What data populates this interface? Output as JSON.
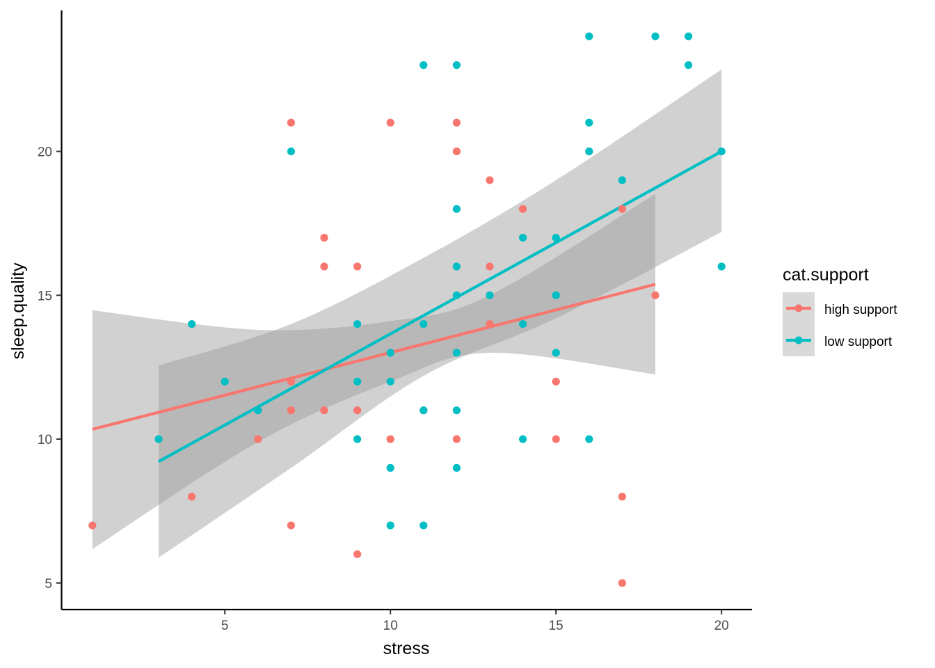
{
  "chart_data": {
    "type": "scatter",
    "xlabel": "stress",
    "ylabel": "sleep.quality",
    "xlim": [
      0.1,
      20.9
    ],
    "ylim": [
      4.1,
      24.9
    ],
    "x_ticks": [
      5,
      10,
      15,
      20
    ],
    "y_ticks": [
      5,
      10,
      15,
      20
    ],
    "grid": false,
    "legend": {
      "title": "cat.support",
      "placement": "right"
    },
    "series": [
      {
        "name": "high support",
        "color": "#F8766D",
        "points": [
          [
            1,
            7
          ],
          [
            4,
            8
          ],
          [
            6,
            10
          ],
          [
            7,
            21
          ],
          [
            7,
            12
          ],
          [
            7,
            11
          ],
          [
            7,
            7
          ],
          [
            8,
            17
          ],
          [
            8,
            16
          ],
          [
            8,
            11
          ],
          [
            9,
            16
          ],
          [
            9,
            11
          ],
          [
            9,
            6
          ],
          [
            10,
            21
          ],
          [
            10,
            10
          ],
          [
            11,
            11
          ],
          [
            12,
            21
          ],
          [
            12,
            20
          ],
          [
            12,
            10
          ],
          [
            13,
            19
          ],
          [
            13,
            16
          ],
          [
            13,
            14
          ],
          [
            14,
            18
          ],
          [
            15,
            12
          ],
          [
            15,
            10
          ],
          [
            16,
            20
          ],
          [
            17,
            18
          ],
          [
            17,
            8
          ],
          [
            17,
            5
          ],
          [
            18,
            15
          ]
        ],
        "fit": {
          "x_start": 1,
          "y_start": 10.34,
          "x_end": 18,
          "y_end": 15.38
        },
        "ci": {
          "x": [
            1,
            6,
            10,
            13,
            18
          ],
          "lower": [
            6.18,
            9.9,
            12.0,
            13.0,
            12.25
          ],
          "upper": [
            14.48,
            13.8,
            14.1,
            15.0,
            18.52
          ]
        }
      },
      {
        "name": "low support",
        "color": "#00BFC4",
        "points": [
          [
            3,
            10
          ],
          [
            4,
            14
          ],
          [
            5,
            12
          ],
          [
            6,
            11
          ],
          [
            7,
            20
          ],
          [
            9,
            14
          ],
          [
            9,
            12
          ],
          [
            9,
            10
          ],
          [
            10,
            13
          ],
          [
            10,
            12
          ],
          [
            10,
            9
          ],
          [
            10,
            7
          ],
          [
            11,
            23
          ],
          [
            11,
            14
          ],
          [
            11,
            11
          ],
          [
            11,
            7
          ],
          [
            12,
            23
          ],
          [
            12,
            18
          ],
          [
            12,
            16
          ],
          [
            12,
            15
          ],
          [
            12,
            13
          ],
          [
            12,
            11
          ],
          [
            12,
            9
          ],
          [
            13,
            15
          ],
          [
            14,
            17
          ],
          [
            14,
            14
          ],
          [
            14,
            10
          ],
          [
            15,
            17
          ],
          [
            15,
            15
          ],
          [
            15,
            13
          ],
          [
            16,
            24
          ],
          [
            16,
            21
          ],
          [
            16,
            20
          ],
          [
            16,
            10
          ],
          [
            17,
            19
          ],
          [
            18,
            24
          ],
          [
            19,
            24
          ],
          [
            19,
            23
          ],
          [
            20,
            20
          ],
          [
            20,
            16
          ]
        ],
        "fit": {
          "x_start": 3,
          "y_start": 9.22,
          "x_end": 20,
          "y_end": 20.0
        },
        "ci": {
          "x": [
            3,
            7,
            11,
            15,
            20
          ],
          "lower": [
            5.88,
            9.0,
            12.2,
            14.2,
            17.2
          ],
          "upper": [
            12.56,
            14.0,
            16.3,
            19.0,
            22.85
          ]
        }
      }
    ]
  }
}
